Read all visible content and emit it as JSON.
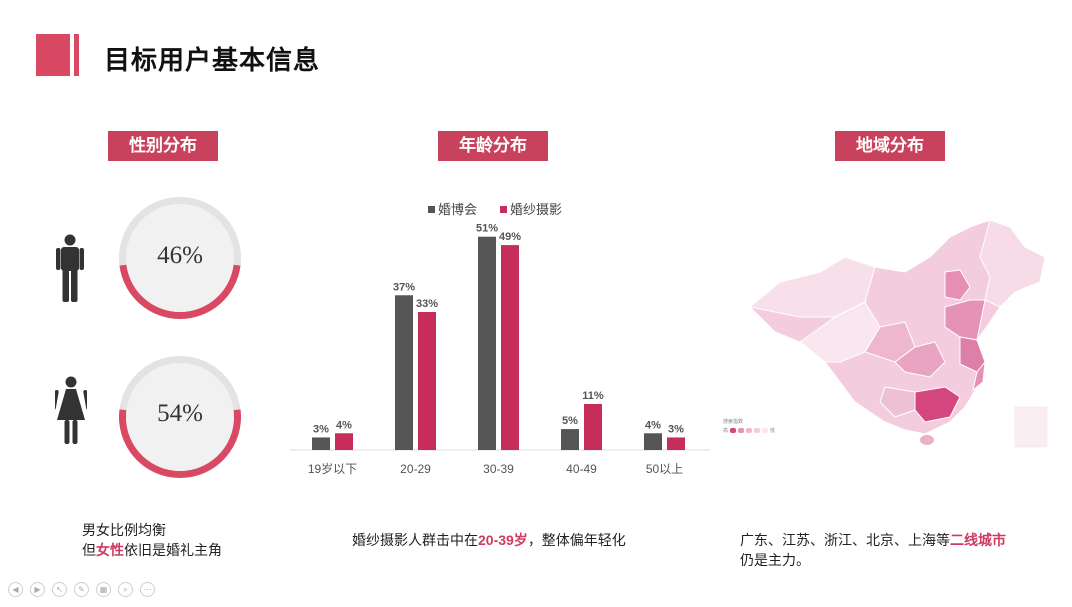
{
  "header": {
    "title": "目标用户基本信息"
  },
  "sections": {
    "gender": "性别分布",
    "age": "年龄分布",
    "region": "地域分布"
  },
  "gender": {
    "male_value": "46%",
    "female_value": "54%",
    "male_fraction": 0.46,
    "female_fraction": 0.54,
    "caption_line1": "男女比例均衡",
    "caption_line2_pre": "但",
    "caption_line2_hl": "女性",
    "caption_line2_post": "依旧是婚礼主角"
  },
  "age_caption": {
    "pre": "婚纱摄影人群击中在",
    "hl": "20-39岁",
    "post": "，整体偏年轻化"
  },
  "region": {
    "legend_title": "搜索指数",
    "legend_high": "高",
    "legend_low": "低",
    "caption_line1_pre": "广东、江苏、浙江、北京、上海等",
    "caption_line1_hl": "二线城市",
    "caption_line2": "仍是主力。"
  },
  "colors": {
    "accent": "#d94963",
    "series1": "#555555",
    "series2": "#c72d5a"
  },
  "chart_data": [
    {
      "type": "pie",
      "categories": [
        "male"
      ],
      "values": [
        46
      ],
      "labels": [
        "46%"
      ]
    },
    {
      "type": "pie",
      "categories": [
        "female"
      ],
      "values": [
        54
      ],
      "labels": [
        "54%"
      ]
    },
    {
      "type": "bar",
      "title": "",
      "categories": [
        "19岁以下",
        "20-29",
        "30-39",
        "40-49",
        "50以上"
      ],
      "series": [
        {
          "name": "婚博会",
          "values": [
            3,
            37,
            51,
            5,
            4
          ],
          "labels": [
            "3%",
            "37%",
            "51%",
            "5%",
            "4%"
          ]
        },
        {
          "name": "婚纱摄影",
          "values": [
            4,
            33,
            49,
            11,
            3
          ],
          "labels": [
            "4%",
            "33%",
            "49%",
            "11%",
            "3%"
          ]
        }
      ],
      "ylim": [
        0,
        55
      ],
      "grid": false,
      "legend": "top"
    }
  ]
}
